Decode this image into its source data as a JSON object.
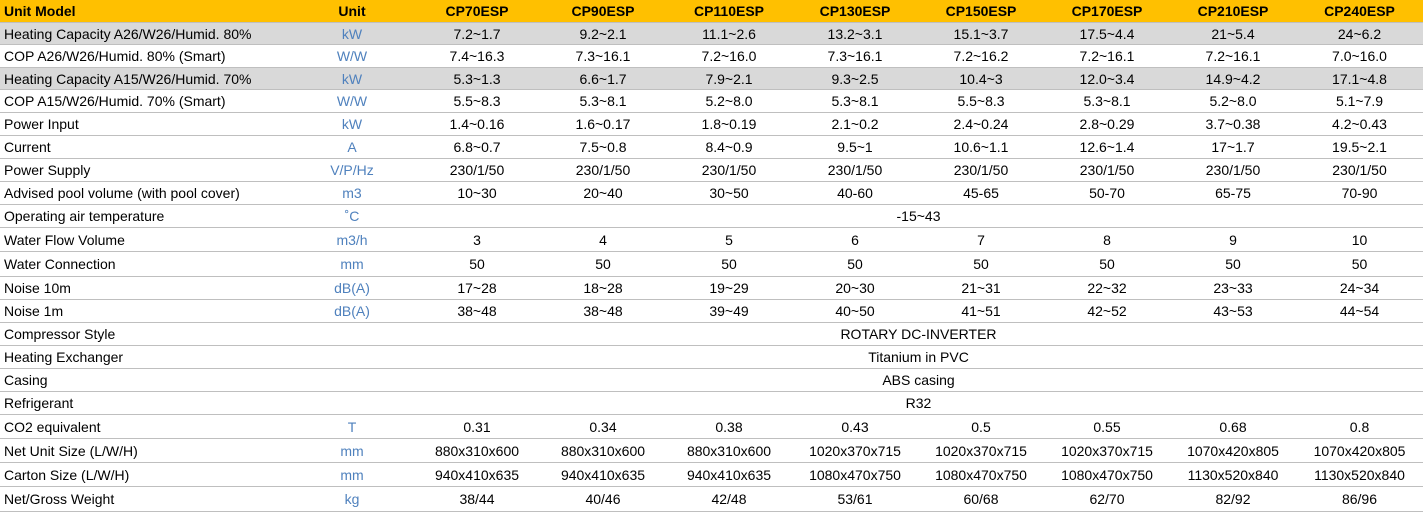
{
  "table": {
    "header": {
      "param": "Unit Model",
      "unit": "Unit",
      "models": [
        "CP70ESP",
        "CP90ESP",
        "CP110ESP",
        "CP130ESP",
        "CP150ESP",
        "CP170ESP",
        "CP210ESP",
        "CP240ESP"
      ]
    },
    "rows": [
      {
        "label": "Heating Capacity   A26/W26/Humid. 80%",
        "unit": "kW",
        "shaded": true,
        "values": [
          "7.2~1.7",
          "9.2~2.1",
          "11.1~2.6",
          "13.2~3.1",
          "15.1~3.7",
          "17.5~4.4",
          "21~5.4",
          "24~6.2"
        ]
      },
      {
        "label": "COP  A26/W26/Humid. 80% (Smart)",
        "unit": "W/W",
        "values": [
          "7.4~16.3",
          "7.3~16.1",
          "7.2~16.0",
          "7.3~16.1",
          "7.2~16.2",
          "7.2~16.1",
          "7.2~16.1",
          "7.0~16.0"
        ]
      },
      {
        "label": "Heating Capacity   A15/W26/Humid. 70%",
        "unit": "kW",
        "shaded": true,
        "values": [
          "5.3~1.3",
          "6.6~1.7",
          "7.9~2.1",
          "9.3~2.5",
          "10.4~3",
          "12.0~3.4",
          "14.9~4.2",
          "17.1~4.8"
        ]
      },
      {
        "label": "COP  A15/W26/Humid. 70% (Smart)",
        "unit": "W/W",
        "values": [
          "5.5~8.3",
          "5.3~8.1",
          "5.2~8.0",
          "5.3~8.1",
          "5.5~8.3",
          "5.3~8.1",
          "5.2~8.0",
          "5.1~7.9"
        ]
      },
      {
        "label": "Power Input",
        "unit": "kW",
        "values": [
          "1.4~0.16",
          "1.6~0.17",
          "1.8~0.19",
          "2.1~0.2",
          "2.4~0.24",
          "2.8~0.29",
          "3.7~0.38",
          "4.2~0.43"
        ]
      },
      {
        "label": "Current",
        "unit": "A",
        "values": [
          "6.8~0.7",
          "7.5~0.8",
          "8.4~0.9",
          "9.5~1",
          "10.6~1.1",
          "12.6~1.4",
          "17~1.7",
          "19.5~2.1"
        ]
      },
      {
        "label": "Power Supply",
        "unit": "V/P/Hz",
        "values": [
          "230/1/50",
          "230/1/50",
          "230/1/50",
          "230/1/50",
          "230/1/50",
          "230/1/50",
          "230/1/50",
          "230/1/50"
        ]
      },
      {
        "label": "Advised pool volume    (with pool cover)",
        "unit": "m3",
        "values": [
          "10~30",
          "20~40",
          "30~50",
          "40-60",
          "45-65",
          "50-70",
          "65-75",
          "70-90"
        ]
      },
      {
        "label": "Operating air temperature",
        "unit": "˚C",
        "merged": "-15~43"
      },
      {
        "label": "Water Flow Volume",
        "unit": "m3/h",
        "values": [
          "3",
          "4",
          "5",
          "6",
          "7",
          "8",
          "9",
          "10"
        ]
      },
      {
        "label": "Water Connection",
        "unit": "mm",
        "values": [
          "50",
          "50",
          "50",
          "50",
          "50",
          "50",
          "50",
          "50"
        ]
      },
      {
        "label": "Noise 10m",
        "unit": "dB(A)",
        "values": [
          "17~28",
          "18~28",
          "19~29",
          "20~30",
          "21~31",
          "22~32",
          "23~33",
          "24~34"
        ]
      },
      {
        "label": "Noise 1m",
        "unit": "dB(A)",
        "values": [
          "38~48",
          "38~48",
          "39~49",
          "40~50",
          "41~51",
          "42~52",
          "43~53",
          "44~54"
        ]
      },
      {
        "label": "Compressor Style",
        "unit": "",
        "merged": "ROTARY DC-INVERTER"
      },
      {
        "label": "Heating Exchanger",
        "unit": "",
        "merged": "Titanium in PVC"
      },
      {
        "label": "Casing",
        "unit": "",
        "merged": "ABS casing"
      },
      {
        "label": "Refrigerant",
        "unit": "",
        "merged": "R32"
      },
      {
        "label": "CO2 equivalent",
        "unit": "T",
        "values": [
          "0.31",
          "0.34",
          "0.38",
          "0.43",
          "0.5",
          "0.55",
          "0.68",
          "0.8"
        ]
      },
      {
        "label": "Net Unit Size (L/W/H)",
        "unit": "mm",
        "values": [
          "880x310x600",
          "880x310x600",
          "880x310x600",
          "1020x370x715",
          "1020x370x715",
          "1020x370x715",
          "1070x420x805",
          "1070x420x805"
        ]
      },
      {
        "label": "Carton Size (L/W/H)",
        "unit": "mm",
        "values": [
          "940x410x635",
          "940x410x635",
          "940x410x635",
          "1080x470x750",
          "1080x470x750",
          "1080x470x750",
          "1130x520x840",
          "1130x520x840"
        ]
      },
      {
        "label": "Net/Gross Weight",
        "unit": "kg",
        "values": [
          "38/44",
          "40/46",
          "42/48",
          "53/61",
          "60/68",
          "62/70",
          "82/92",
          "86/96"
        ]
      }
    ]
  },
  "colors": {
    "header_bg": "#ffc000",
    "shaded_row_bg": "#d9d9d9",
    "unit_text": "#4f81bd",
    "grid_line": "#bfbfbf"
  }
}
